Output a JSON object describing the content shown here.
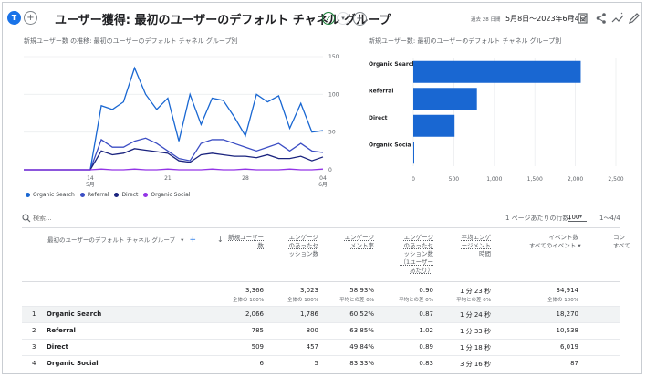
{
  "header": {
    "avatar_letter": "T",
    "title": "ユーザー獲得: 最初のユーザーのデフォルト チャネル グループ",
    "date_note": "過去 28 日間",
    "date_range": "5月8日～2023年6月4日"
  },
  "line_panel": {
    "title": "新規ユーザー数 の推移: 最初のユーザーのデフォルト チャネル グループ別"
  },
  "bar_panel": {
    "title": "新規ユーザー数: 最初のユーザーのデフォルト チャネル グループ別"
  },
  "chart_data": [
    {
      "type": "line",
      "x": [
        "5/8",
        "5/9",
        "5/10",
        "5/11",
        "5/12",
        "5/13",
        "5/14",
        "5/15",
        "5/16",
        "5/17",
        "5/18",
        "5/19",
        "5/20",
        "5/21",
        "5/22",
        "5/23",
        "5/24",
        "5/25",
        "5/26",
        "5/27",
        "5/28",
        "5/29",
        "5/30",
        "5/31",
        "6/1",
        "6/2",
        "6/3",
        "6/4"
      ],
      "x_tick_labels": [
        "14",
        "5月",
        "21",
        "28",
        "04",
        "6月"
      ],
      "y_tick_labels": [
        "150",
        "100",
        "50",
        "0"
      ],
      "ylim": [
        0,
        150
      ],
      "series": [
        {
          "name": "Organic Search",
          "color": "#1967d2",
          "values": [
            0,
            0,
            0,
            0,
            0,
            0,
            0,
            85,
            80,
            90,
            135,
            100,
            80,
            95,
            38,
            100,
            60,
            95,
            92,
            70,
            45,
            100,
            90,
            98,
            55,
            88,
            50,
            52
          ]
        },
        {
          "name": "Referral",
          "color": "#3c4ec4",
          "values": [
            0,
            0,
            0,
            0,
            0,
            0,
            0,
            40,
            30,
            30,
            38,
            42,
            35,
            25,
            15,
            12,
            35,
            40,
            40,
            35,
            30,
            25,
            30,
            35,
            25,
            35,
            25,
            23
          ]
        },
        {
          "name": "Direct",
          "color": "#1a237e",
          "values": [
            0,
            0,
            0,
            0,
            0,
            0,
            0,
            25,
            20,
            22,
            28,
            26,
            24,
            22,
            12,
            10,
            20,
            22,
            20,
            18,
            18,
            16,
            20,
            15,
            15,
            18,
            12,
            17
          ]
        },
        {
          "name": "Organic Social",
          "color": "#9334e6",
          "values": [
            0,
            0,
            0,
            0,
            0,
            0,
            0,
            1,
            0,
            0,
            1,
            0,
            0,
            1,
            0,
            0,
            0,
            1,
            0,
            0,
            1,
            0,
            0,
            0,
            1,
            0,
            0,
            1
          ]
        }
      ]
    },
    {
      "type": "bar",
      "orientation": "horizontal",
      "categories": [
        "Organic Search",
        "Referral",
        "Direct",
        "Organic Social"
      ],
      "values": [
        2066,
        785,
        509,
        6
      ],
      "color": "#1967d2",
      "xlim": [
        0,
        2500
      ],
      "x_tick_labels": [
        "0",
        "500",
        "1,000",
        "1,500",
        "2,000",
        "2,500"
      ]
    }
  ],
  "search": {
    "placeholder": "検索..."
  },
  "pagination": {
    "rows_label": "1 ページあたりの行数:",
    "rows_value": "100",
    "range": "1〜4/4"
  },
  "table": {
    "dimension_header": "最初のユーザーのデフォルト チャネル グループ",
    "metric_headers": [
      [
        "新規ユーザー",
        "数"
      ],
      [
        "エンゲージ",
        "のあったセ",
        "ッション数"
      ],
      [
        "エンゲージ",
        "メント率"
      ],
      [
        "エンゲージ",
        "のあったセ",
        "ッション数",
        "（1ユーザー",
        "あたり）"
      ],
      [
        "平均エンゲ",
        "ージメント",
        "時間"
      ],
      [
        "イベント数",
        "すべてのイベント"
      ],
      [
        "コン",
        "すべて"
      ]
    ],
    "totals": [
      "3,366",
      "3,023",
      "58.93%",
      "0.90",
      "1 分 23 秒",
      "34,914"
    ],
    "totals_sub": [
      "全体の 100%",
      "全体の 100%",
      "平均との差 0%",
      "平均との差 0%",
      "平均との差 0%",
      "全体の 100%"
    ],
    "rows": [
      {
        "idx": "1",
        "name": "Organic Search",
        "values": [
          "2,066",
          "1,786",
          "60.52%",
          "0.87",
          "1 分 24 秒",
          "18,270"
        ]
      },
      {
        "idx": "2",
        "name": "Referral",
        "values": [
          "785",
          "800",
          "63.85%",
          "1.02",
          "1 分 33 秒",
          "10,538"
        ]
      },
      {
        "idx": "3",
        "name": "Direct",
        "values": [
          "509",
          "457",
          "49.84%",
          "0.89",
          "1 分 18 秒",
          "6,019"
        ]
      },
      {
        "idx": "4",
        "name": "Organic Social",
        "values": [
          "6",
          "5",
          "83.33%",
          "0.83",
          "3 分 16 秒",
          "87"
        ]
      }
    ]
  }
}
